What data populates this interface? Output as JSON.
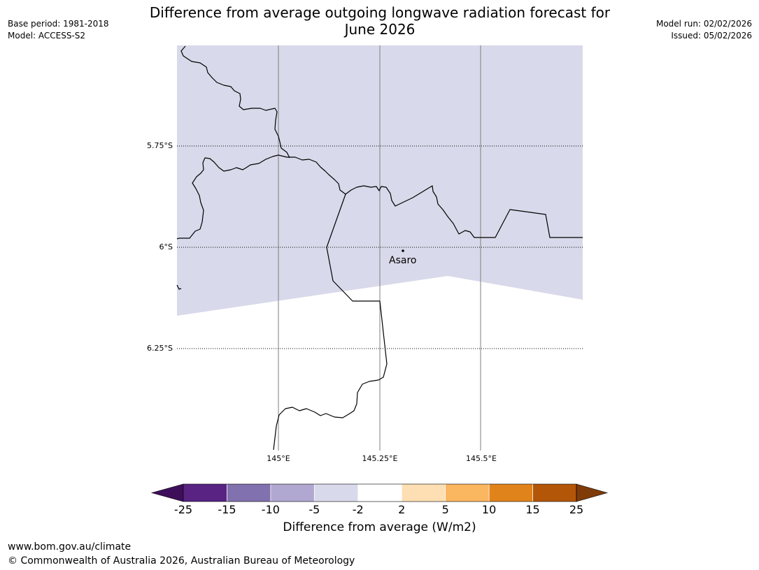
{
  "header": {
    "base_period": "Base period: 1981-2018",
    "model": "Model: ACCESS-S2",
    "title_line1": "Difference from average outgoing longwave radiation forecast for",
    "title_line2": "June 2026",
    "model_run": "Model run: 02/02/2026",
    "issued": "Issued: 05/02/2026"
  },
  "map": {
    "lat_labels": [
      "5.75°S",
      "6°S",
      "6.25°S"
    ],
    "lon_labels": [
      "145°E",
      "145.25°E",
      "145.5°E"
    ],
    "place": "Asaro",
    "anomaly_bin_shown": "-5 to -2",
    "anomaly_fill_color": "#d8d9ea"
  },
  "colorbar": {
    "colors": [
      "#3f0e5a",
      "#582383",
      "#8171ae",
      "#b0a8d1",
      "#d8d9ea",
      "#ffffff",
      "#fddfb3",
      "#fbb660",
      "#e1831b",
      "#b35608",
      "#7f3b08"
    ],
    "tick_labels": [
      "-25",
      "-15",
      "-10",
      "-5",
      "-2",
      "2",
      "5",
      "10",
      "15",
      "25"
    ],
    "title": "Difference from average (W/m2)"
  },
  "footer": {
    "url": "www.bom.gov.au/climate",
    "copyright": "© Commonwealth of Australia 2026, Australian Bureau of Meteorology"
  }
}
